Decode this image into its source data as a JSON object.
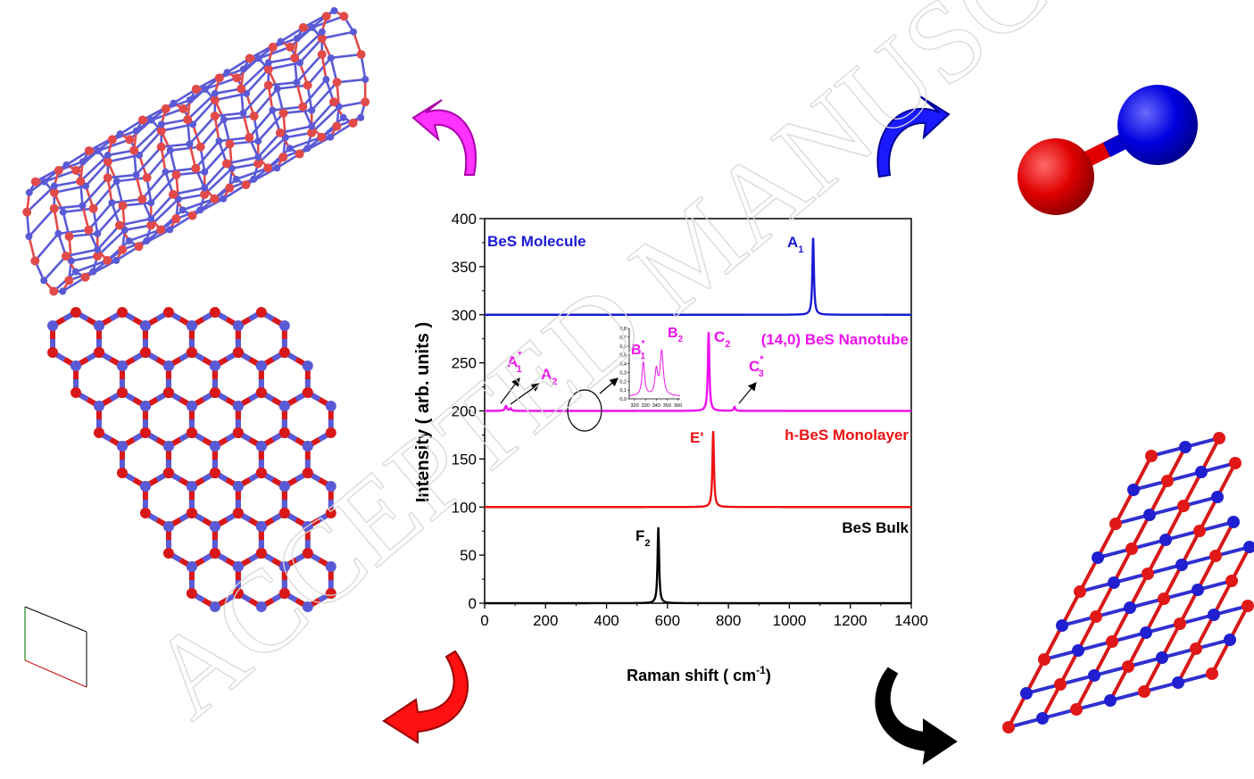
{
  "watermark": "ACCEPTED MANUSCRIPT",
  "chart_data": {
    "type": "line",
    "xlabel": "Raman shift ( cm",
    "xlabel_sup": "-1",
    "xlabel_end": ")",
    "ylabel": "Intensity ( arb. units )",
    "xlim": [
      0,
      1400
    ],
    "ylim": [
      0,
      400
    ],
    "x_ticks": [
      0,
      200,
      400,
      600,
      800,
      1000,
      1200,
      1400
    ],
    "y_ticks": [
      0,
      50,
      100,
      150,
      200,
      250,
      300,
      350,
      400
    ],
    "series": [
      {
        "name": "BeS Molecule",
        "color": "#1a1ad6",
        "baseline": 300,
        "peaks": [
          {
            "x": 1078,
            "height": 80,
            "width": 6
          }
        ]
      },
      {
        "name": "(14,0) BeS Nanotube",
        "color": "#ee11ee",
        "baseline": 200,
        "peaks": [
          {
            "x": 70,
            "height": 5,
            "width": 8
          },
          {
            "x": 85,
            "height": 2.5,
            "width": 6
          },
          {
            "x": 735,
            "height": 82,
            "width": 6
          },
          {
            "x": 820,
            "height": 4,
            "width": 6
          }
        ]
      },
      {
        "name": "h-BeS Monolayer",
        "color": "#ee1111",
        "baseline": 100,
        "peaks": [
          {
            "x": 750,
            "height": 79,
            "width": 6
          }
        ]
      },
      {
        "name": "BeS Bulk",
        "color": "#000000",
        "baseline": 0,
        "peaks": [
          {
            "x": 570,
            "height": 79,
            "width": 6
          }
        ]
      }
    ],
    "annotations": [
      {
        "id": "A1",
        "text": "A",
        "sub": "1",
        "sup": "",
        "color": "#1a1ad6"
      },
      {
        "id": "A1s",
        "text": "A",
        "sub": "1",
        "sup": "*",
        "color": "#ee11ee"
      },
      {
        "id": "A2",
        "text": "A",
        "sub": "2",
        "sup": "",
        "color": "#ee11ee"
      },
      {
        "id": "C2",
        "text": "C",
        "sub": "2",
        "sup": "",
        "color": "#ee11ee"
      },
      {
        "id": "C3s",
        "text": "C",
        "sub": "3",
        "sup": "*",
        "color": "#ee11ee"
      },
      {
        "id": "E",
        "text": "E'",
        "sub": "",
        "sup": "",
        "color": "#ee1111"
      },
      {
        "id": "F2",
        "text": "F",
        "sub": "2",
        "sup": "",
        "color": "#000000"
      }
    ],
    "inset": {
      "x_ticks": [
        320,
        330,
        340,
        350,
        360
      ],
      "y_ticks": [
        "0,0",
        "0,1",
        "0,2",
        "0,3",
        "0,4",
        "0,5",
        "0,6",
        "0,7",
        "0,8"
      ],
      "xlim": [
        315,
        362
      ],
      "ylim": [
        0,
        0.8
      ],
      "color": "#ee11ee",
      "peaks": [
        {
          "x": 328,
          "height": 0.38,
          "width": 3
        },
        {
          "x": 340,
          "height": 0.28,
          "width": 3
        },
        {
          "x": 345,
          "height": 0.5,
          "width": 3.5
        }
      ],
      "labels": [
        {
          "id": "B1",
          "text": "B",
          "sub": "1",
          "sup": "*"
        },
        {
          "id": "B2",
          "text": "B",
          "sub": "2",
          "sup": ""
        }
      ]
    }
  }
}
